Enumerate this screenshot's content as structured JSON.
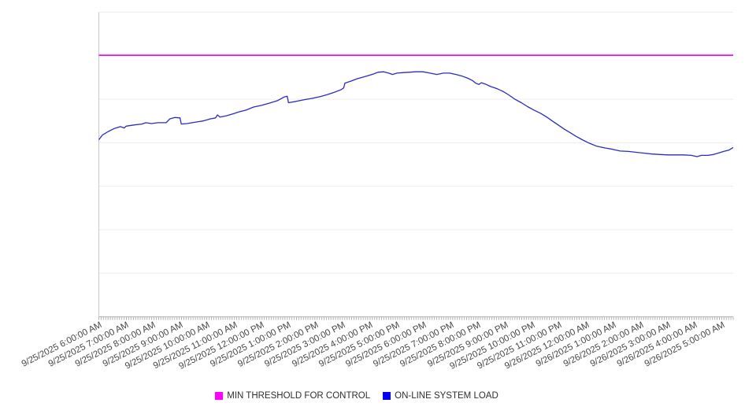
{
  "page": {
    "background": "#ffffff"
  },
  "legend": {
    "position": "bottom",
    "items": [
      {
        "label": "MIN THRESHOLD FOR CONTROL",
        "color": "#ff00ff"
      },
      {
        "label": "ON-LINE SYSTEM LOAD",
        "color": "#0000ee"
      }
    ]
  },
  "chart_data": {
    "type": "line",
    "title": "",
    "xlabel": "",
    "ylabel": "",
    "legend_position": "bottom",
    "grid": true,
    "x_axis": {
      "labels": [
        "9/25/2025 6:00:00 AM",
        "9/25/2025 7:00:00 AM",
        "9/25/2025 8:00:00 AM",
        "9/25/2025 9:00:00 AM",
        "9/25/2025 10:00:00 AM",
        "9/25/2025 11:00:00 AM",
        "9/25/2025 12:00:00 PM",
        "9/25/2025 1:00:00 PM",
        "9/25/2025 2:00:00 PM",
        "9/25/2025 3:00:00 PM",
        "9/25/2025 4:00:00 PM",
        "9/25/2025 5:00:00 PM",
        "9/25/2025 6:00:00 PM",
        "9/25/2025 7:00:00 PM",
        "9/25/2025 8:00:00 PM",
        "9/25/2025 9:00:00 PM",
        "9/25/2025 10:00:00 PM",
        "9/25/2025 11:00:00 PM",
        "9/26/2025 12:00:00 AM",
        "9/26/2025 1:00:00 AM",
        "9/26/2025 2:00:00 AM",
        "9/26/2025 3:00:00 AM",
        "9/26/2025 4:00:00 AM",
        "9/26/2025 5:00:00 AM"
      ],
      "label_rotation_deg": -27,
      "minor_tick_count": 277
    },
    "y_axis": {
      "tick_labels_visible": false,
      "gridline_count": 8,
      "range_units": [
        0,
        7
      ]
    },
    "series": [
      {
        "name": "MIN THRESHOLD FOR CONTROL",
        "type": "threshold-line",
        "color": "#ee00ee",
        "value": 6.01
      },
      {
        "name": "ON-LINE SYSTEM LOAD",
        "type": "line",
        "color": "#2b2bc4",
        "points": [
          [
            0.0,
            4.07
          ],
          [
            0.006,
            4.18
          ],
          [
            0.015,
            4.26
          ],
          [
            0.025,
            4.33
          ],
          [
            0.034,
            4.37
          ],
          [
            0.04,
            4.34
          ],
          [
            0.043,
            4.38
          ],
          [
            0.056,
            4.41
          ],
          [
            0.068,
            4.43
          ],
          [
            0.074,
            4.46
          ],
          [
            0.083,
            4.44
          ],
          [
            0.093,
            4.46
          ],
          [
            0.106,
            4.46
          ],
          [
            0.112,
            4.55
          ],
          [
            0.12,
            4.58
          ],
          [
            0.128,
            4.57
          ],
          [
            0.13,
            4.43
          ],
          [
            0.139,
            4.44
          ],
          [
            0.151,
            4.47
          ],
          [
            0.164,
            4.5
          ],
          [
            0.176,
            4.55
          ],
          [
            0.184,
            4.57
          ],
          [
            0.187,
            4.64
          ],
          [
            0.191,
            4.59
          ],
          [
            0.201,
            4.62
          ],
          [
            0.213,
            4.67
          ],
          [
            0.221,
            4.71
          ],
          [
            0.232,
            4.75
          ],
          [
            0.244,
            4.82
          ],
          [
            0.257,
            4.86
          ],
          [
            0.269,
            4.91
          ],
          [
            0.282,
            4.97
          ],
          [
            0.292,
            5.05
          ],
          [
            0.297,
            5.07
          ],
          [
            0.299,
            4.92
          ],
          [
            0.311,
            4.95
          ],
          [
            0.324,
            4.99
          ],
          [
            0.336,
            5.02
          ],
          [
            0.349,
            5.06
          ],
          [
            0.361,
            5.11
          ],
          [
            0.373,
            5.17
          ],
          [
            0.382,
            5.22
          ],
          [
            0.386,
            5.26
          ],
          [
            0.388,
            5.37
          ],
          [
            0.398,
            5.42
          ],
          [
            0.407,
            5.47
          ],
          [
            0.417,
            5.51
          ],
          [
            0.426,
            5.55
          ],
          [
            0.433,
            5.58
          ],
          [
            0.44,
            5.62
          ],
          [
            0.449,
            5.63
          ],
          [
            0.457,
            5.6
          ],
          [
            0.463,
            5.57
          ],
          [
            0.47,
            5.6
          ],
          [
            0.479,
            5.61
          ],
          [
            0.489,
            5.62
          ],
          [
            0.499,
            5.63
          ],
          [
            0.511,
            5.63
          ],
          [
            0.522,
            5.6
          ],
          [
            0.533,
            5.57
          ],
          [
            0.543,
            5.6
          ],
          [
            0.553,
            5.6
          ],
          [
            0.563,
            5.57
          ],
          [
            0.573,
            5.53
          ],
          [
            0.582,
            5.48
          ],
          [
            0.589,
            5.43
          ],
          [
            0.594,
            5.37
          ],
          [
            0.599,
            5.34
          ],
          [
            0.603,
            5.38
          ],
          [
            0.609,
            5.35
          ],
          [
            0.618,
            5.29
          ],
          [
            0.628,
            5.24
          ],
          [
            0.637,
            5.18
          ],
          [
            0.646,
            5.1
          ],
          [
            0.656,
            5.0
          ],
          [
            0.666,
            4.92
          ],
          [
            0.676,
            4.83
          ],
          [
            0.686,
            4.75
          ],
          [
            0.696,
            4.68
          ],
          [
            0.706,
            4.59
          ],
          [
            0.716,
            4.49
          ],
          [
            0.726,
            4.39
          ],
          [
            0.734,
            4.31
          ],
          [
            0.743,
            4.23
          ],
          [
            0.752,
            4.15
          ],
          [
            0.762,
            4.07
          ],
          [
            0.773,
            3.99
          ],
          [
            0.785,
            3.92
          ],
          [
            0.798,
            3.88
          ],
          [
            0.81,
            3.85
          ],
          [
            0.822,
            3.81
          ],
          [
            0.835,
            3.8
          ],
          [
            0.847,
            3.78
          ],
          [
            0.86,
            3.76
          ],
          [
            0.872,
            3.74
          ],
          [
            0.885,
            3.73
          ],
          [
            0.897,
            3.72
          ],
          [
            0.909,
            3.72
          ],
          [
            0.922,
            3.72
          ],
          [
            0.934,
            3.71
          ],
          [
            0.943,
            3.68
          ],
          [
            0.95,
            3.71
          ],
          [
            0.96,
            3.71
          ],
          [
            0.969,
            3.73
          ],
          [
            0.978,
            3.77
          ],
          [
            0.985,
            3.8
          ],
          [
            0.993,
            3.83
          ],
          [
            1.0,
            3.89
          ]
        ]
      }
    ]
  }
}
